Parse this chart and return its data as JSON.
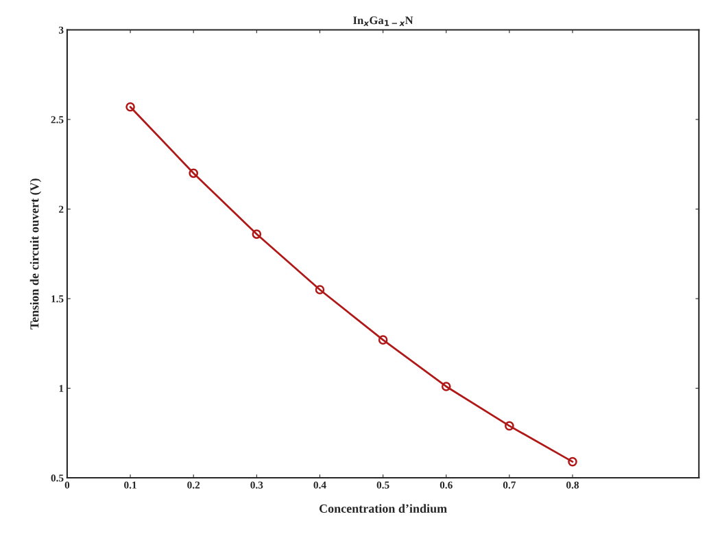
{
  "chart_data": {
    "type": "line",
    "title": "In$_{x}$Ga$_{1−x}$N",
    "xlabel": "Concentration d’indium",
    "ylabel": "Tension de circuit ouvert (V)",
    "x": [
      0.1,
      0.2,
      0.3,
      0.4,
      0.5,
      0.6,
      0.7,
      0.8
    ],
    "series": [
      {
        "color": "#b01818",
        "values": [
          2.57,
          2.2,
          1.86,
          1.55,
          1.27,
          1.01,
          0.79,
          0.59
        ]
      }
    ],
    "xlim": [
      0,
      1
    ],
    "xticks": [
      0,
      0.1,
      0.2,
      0.3,
      0.4,
      0.5,
      0.6,
      0.7,
      0.8
    ],
    "ylim": [
      0.5,
      3
    ],
    "yticks": [
      0.5,
      1,
      1.5,
      2,
      2.5,
      3
    ],
    "marker": "circle",
    "line_style": "solid",
    "grid": false
  }
}
